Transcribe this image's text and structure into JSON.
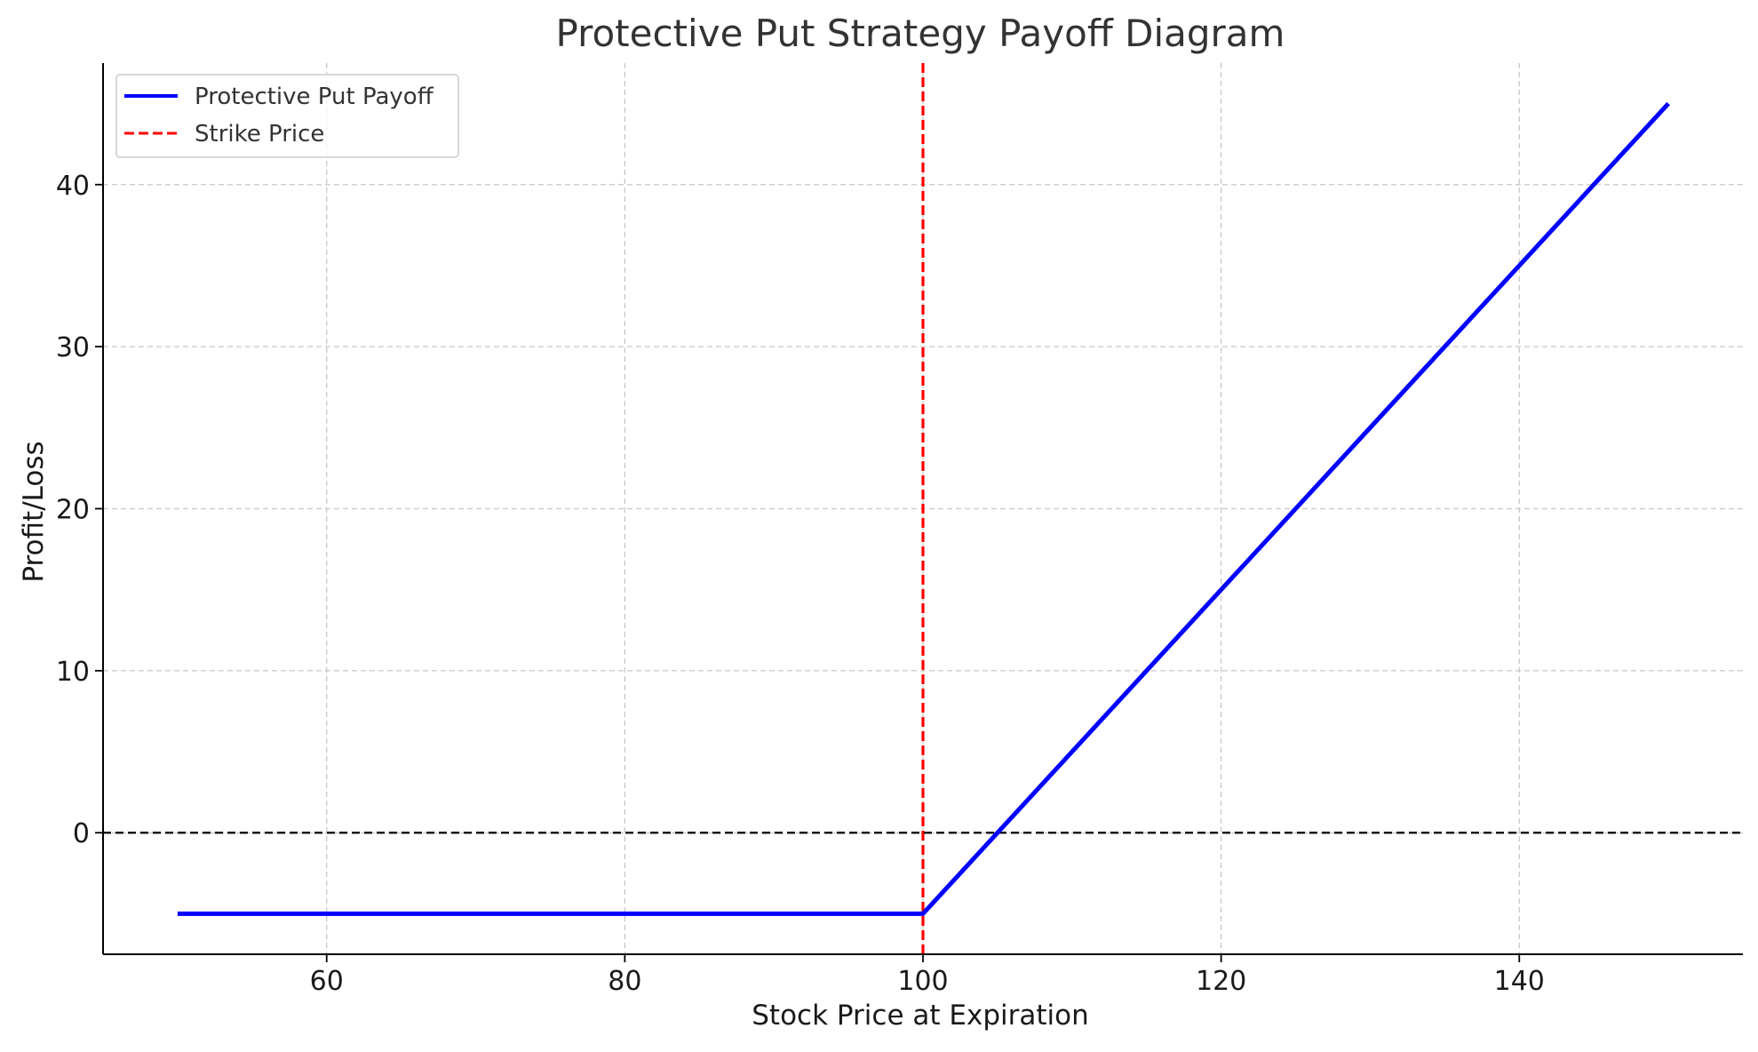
{
  "chart_data": {
    "type": "line",
    "title": "Protective Put Strategy Payoff Diagram",
    "xlabel": "Stock Price at Expiration",
    "ylabel": "Profit/Loss",
    "xlim": [
      45,
      155
    ],
    "ylim": [
      -7.5,
      47.5
    ],
    "xticks": [
      60,
      80,
      100,
      120,
      140
    ],
    "yticks": [
      0,
      10,
      20,
      30,
      40
    ],
    "grid": true,
    "legend_position": "upper-left",
    "series": [
      {
        "name": "Protective Put Payoff",
        "color": "#0000ff",
        "style": "solid",
        "x": [
          50,
          100,
          150
        ],
        "y": [
          -5,
          -5,
          45
        ]
      }
    ],
    "reference_lines": [
      {
        "name": "Strike Price",
        "orientation": "vertical",
        "value": 100,
        "color": "#ff0000",
        "style": "dashed"
      },
      {
        "orientation": "horizontal",
        "value": 0,
        "color": "#000000",
        "style": "dashed"
      }
    ]
  }
}
